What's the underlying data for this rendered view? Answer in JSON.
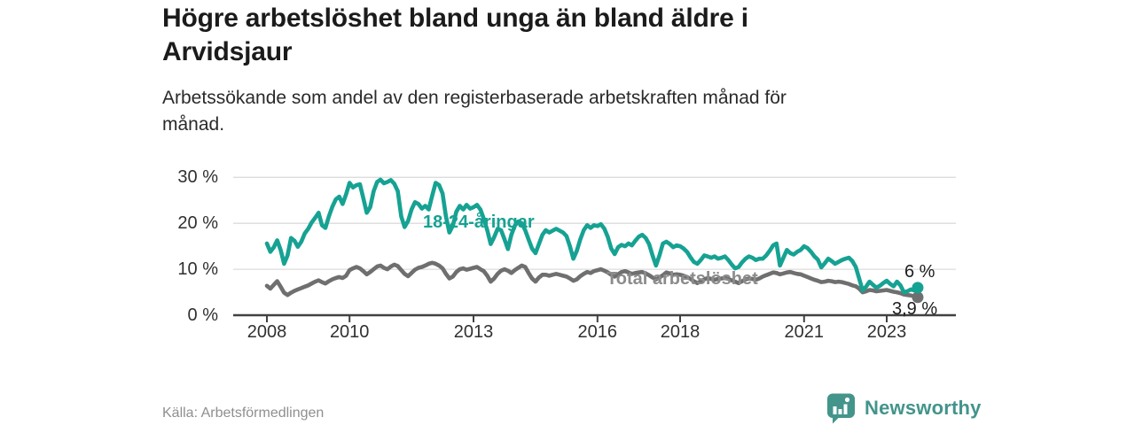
{
  "header": {
    "title_lines": [
      "Högre arbetslöshet bland unga än bland äldre i",
      "Arvidsjaur"
    ],
    "subtitle_lines": [
      "Arbetssökande som andel av den registerbaserade arbetskraften månad för",
      "månad."
    ]
  },
  "footer": {
    "source": "Källa: Arbetsförmedlingen",
    "brand_name": "Newsworthy"
  },
  "colors": {
    "accent_teal": "#16a293",
    "line_gray": "#706f6f",
    "label_gray": "#8c8c8c",
    "axis": "#414141",
    "grid": "#dcdcdc",
    "tick_text": "#303030",
    "end_label_text": "#1d1d1d",
    "brand": "#43948b"
  },
  "chart_data": {
    "type": "line",
    "title": "Högre arbetslöshet bland unga än bland äldre i Arvidsjaur",
    "subtitle": "Arbetssökande som andel av den registerbaserade arbetskraften månad för månad.",
    "unit": "%",
    "x_unit": "month",
    "x_start": "2008-01",
    "x_end": "2023-10",
    "x_tick_years": [
      "2008",
      "2010",
      "2013",
      "2016",
      "2018",
      "2021",
      "2023"
    ],
    "y_ticks": [
      {
        "value": 30,
        "label": "30 %"
      },
      {
        "value": 20,
        "label": "20 %"
      },
      {
        "value": 10,
        "label": "10 %"
      },
      {
        "value": 0,
        "label": "0 %"
      }
    ],
    "ylim": [
      0,
      32
    ],
    "grid": "horizontal",
    "legend": "inline-labels",
    "series": [
      {
        "name": "18-24-åringar",
        "color": "#16a293",
        "label_color": "#16a293",
        "end_label": "6 %",
        "last_value": 6.0,
        "values": [
          15.6,
          13.8,
          14.8,
          16.3,
          14.2,
          11.2,
          13.0,
          16.8,
          16.2,
          14.9,
          16.0,
          17.8,
          18.8,
          20.2,
          21.2,
          22.3,
          19.6,
          19.0,
          21.5,
          23.6,
          25.2,
          25.8,
          24.2,
          26.3,
          28.8,
          27.8,
          28.3,
          28.5,
          25.5,
          22.3,
          23.5,
          27.0,
          29.0,
          29.5,
          28.7,
          29.0,
          29.4,
          28.6,
          27.0,
          21.5,
          19.2,
          20.5,
          23.0,
          24.6,
          24.2,
          23.2,
          23.8,
          23.0,
          26.0,
          28.8,
          28.3,
          26.5,
          21.5,
          18.0,
          19.5,
          22.5,
          23.8,
          23.0,
          24.0,
          23.2,
          23.5,
          24.0,
          23.0,
          21.0,
          18.5,
          15.5,
          17.0,
          18.8,
          18.5,
          16.5,
          14.4,
          17.5,
          19.5,
          20.4,
          20.0,
          18.5,
          16.5,
          14.5,
          13.5,
          15.5,
          17.5,
          18.5,
          18.0,
          18.4,
          18.8,
          18.4,
          18.0,
          17.2,
          15.0,
          12.3,
          14.0,
          16.5,
          18.5,
          19.6,
          19.0,
          19.6,
          19.4,
          19.8,
          18.8,
          17.0,
          14.5,
          13.3,
          14.8,
          15.3,
          15.0,
          15.6,
          15.2,
          16.2,
          17.1,
          17.5,
          16.8,
          15.5,
          13.0,
          10.8,
          13.0,
          15.6,
          16.0,
          15.5,
          14.8,
          15.2,
          15.0,
          14.5,
          13.8,
          12.6,
          11.6,
          11.2,
          12.0,
          13.0,
          12.8,
          12.5,
          12.8,
          12.3,
          12.5,
          12.8,
          12.0,
          11.0,
          10.2,
          10.5,
          11.5,
          12.3,
          12.8,
          12.5,
          12.0,
          12.3,
          12.3,
          13.0,
          14.0,
          15.2,
          15.6,
          10.8,
          12.5,
          14.2,
          13.5,
          13.2,
          13.8,
          14.2,
          15.0,
          14.6,
          13.8,
          12.8,
          12.1,
          10.4,
          11.3,
          12.3,
          11.8,
          11.2,
          11.6,
          12.0,
          12.3,
          12.5,
          11.8,
          10.5,
          8.0,
          5.4,
          6.2,
          7.3,
          6.6,
          6.0,
          6.4,
          7.0,
          7.5,
          6.8,
          6.3,
          7.3,
          6.5,
          5.0,
          5.2,
          5.6,
          5.4,
          6.0
        ]
      },
      {
        "name": "Total arbetslöshet",
        "color": "#706f6f",
        "label_color": "#8c8c8c",
        "end_label": "3,9 %",
        "last_value": 3.9,
        "values": [
          6.4,
          5.8,
          6.6,
          7.4,
          6.2,
          4.9,
          4.4,
          4.9,
          5.3,
          5.6,
          5.9,
          6.2,
          6.5,
          6.9,
          7.3,
          7.6,
          7.2,
          6.9,
          7.4,
          7.8,
          8.1,
          8.3,
          8.1,
          8.6,
          9.8,
          10.2,
          10.5,
          10.2,
          9.6,
          8.9,
          9.4,
          10.0,
          10.6,
          10.8,
          10.3,
          10.0,
          10.6,
          11.0,
          10.7,
          9.8,
          9.0,
          8.5,
          9.2,
          9.9,
          10.3,
          10.5,
          10.8,
          11.2,
          11.4,
          11.2,
          10.8,
          10.2,
          9.0,
          8.0,
          8.4,
          9.4,
          10.0,
          10.2,
          9.9,
          10.1,
          10.3,
          10.5,
          10.0,
          9.6,
          8.6,
          7.3,
          8.0,
          9.0,
          9.7,
          10.0,
          9.7,
          9.2,
          9.8,
          10.3,
          10.8,
          10.5,
          9.2,
          8.0,
          7.3,
          8.2,
          8.8,
          8.8,
          8.6,
          8.8,
          9.0,
          8.8,
          8.6,
          8.4,
          8.0,
          7.5,
          7.8,
          8.5,
          9.0,
          9.4,
          9.2,
          9.6,
          9.8,
          10.0,
          9.7,
          9.3,
          8.8,
          8.4,
          8.9,
          9.4,
          9.6,
          9.3,
          9.0,
          9.2,
          9.3,
          9.4,
          9.1,
          8.7,
          8.2,
          7.8,
          8.2,
          8.7,
          9.3,
          9.1,
          8.8,
          8.9,
          8.8,
          8.6,
          8.3,
          7.9,
          7.4,
          7.0,
          7.4,
          7.8,
          8.1,
          7.9,
          7.7,
          7.9,
          8.0,
          8.1,
          7.9,
          7.6,
          7.3,
          7.0,
          7.4,
          7.8,
          8.0,
          7.9,
          7.7,
          8.0,
          8.4,
          8.7,
          9.0,
          9.3,
          9.2,
          8.9,
          9.1,
          9.3,
          9.4,
          9.2,
          9.0,
          8.9,
          8.6,
          8.3,
          8.0,
          7.7,
          7.5,
          7.2,
          7.3,
          7.5,
          7.4,
          7.2,
          7.3,
          7.2,
          7.0,
          6.8,
          6.5,
          6.3,
          5.8,
          5.0,
          5.2,
          5.5,
          5.4,
          5.2,
          5.3,
          5.4,
          5.5,
          5.3,
          5.1,
          5.0,
          4.8,
          4.5,
          4.4,
          4.3,
          4.1,
          3.9
        ]
      }
    ]
  }
}
